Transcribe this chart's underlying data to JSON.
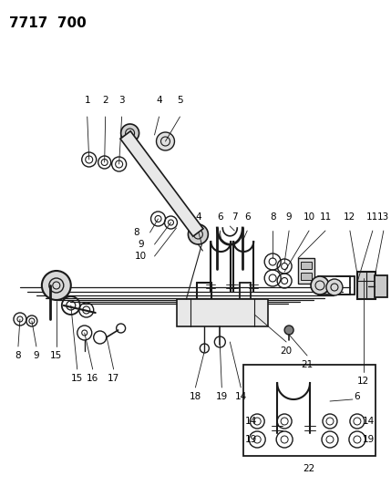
{
  "title": "7717  700",
  "bg": "#ffffff",
  "lc": "#1a1a1a",
  "figsize": [
    4.29,
    5.33
  ],
  "dpi": 100
}
